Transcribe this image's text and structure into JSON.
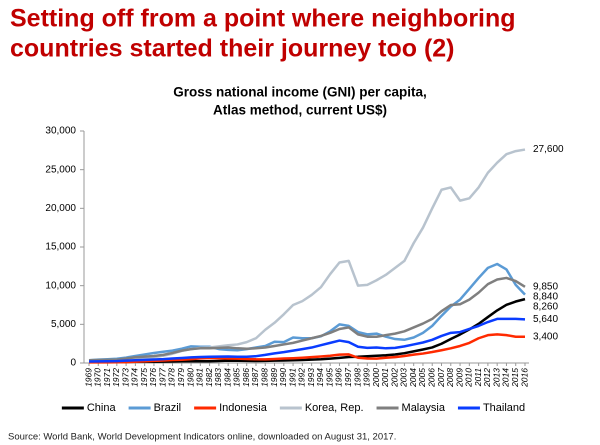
{
  "header": {
    "title": [
      "Setting off from a point where neighboring",
      "countries started their journey too (2)"
    ]
  },
  "chart_data": {
    "type": "line",
    "title": [
      "Gross national income (GNI) per capita,",
      "Atlas method, current US$)"
    ],
    "categories": [
      "1969",
      "1970",
      "1971",
      "1972",
      "1973",
      "1974",
      "1975",
      "1976",
      "1977",
      "1978",
      "1979",
      "1980",
      "1981",
      "1982",
      "1983",
      "1984",
      "1985",
      "1986",
      "1987",
      "1988",
      "1989",
      "1990",
      "1991",
      "1992",
      "1993",
      "1994",
      "1995",
      "1996",
      "1997",
      "1998",
      "1999",
      "2000",
      "2001",
      "2002",
      "2003",
      "2004",
      "2005",
      "2006",
      "2007",
      "2008",
      "2009",
      "2010",
      "2011",
      "2012",
      "2013",
      "2014",
      "2015",
      "2016"
    ],
    "ylim": [
      0,
      30000
    ],
    "yticks": [
      0,
      {
        "value": 5000,
        "label": "5,000"
      },
      {
        "value": 10000,
        "label": "10,000"
      },
      {
        "value": 15000,
        "label": "15,000"
      },
      {
        "value": 20000,
        "label": "20,000"
      },
      {
        "value": 25000,
        "label": "25,000"
      },
      {
        "value": 30000,
        "label": "30,000"
      }
    ],
    "grid": false,
    "legend": "bottom",
    "series": [
      {
        "name": "China",
        "color": "#000000",
        "values": [
          100,
          110,
          120,
          130,
          140,
          170,
          180,
          170,
          180,
          200,
          220,
          220,
          220,
          230,
          260,
          300,
          290,
          280,
          260,
          270,
          310,
          330,
          350,
          380,
          430,
          480,
          570,
          670,
          770,
          810,
          880,
          940,
          1000,
          1100,
          1270,
          1500,
          1750,
          2010,
          2490,
          3100,
          3690,
          4340,
          5060,
          5940,
          6800,
          7520,
          7950,
          8260
        ],
        "value_labels": [
          null,
          null,
          null,
          null,
          null,
          null,
          null,
          null,
          null,
          null,
          null,
          null,
          null,
          null,
          null,
          null,
          null,
          null,
          null,
          null,
          null,
          null,
          null,
          null,
          null,
          null,
          null,
          null,
          null,
          null,
          null,
          null,
          null,
          null,
          null,
          null,
          null,
          null,
          null,
          null,
          null,
          null,
          null,
          null,
          null,
          null,
          null,
          "8,260"
        ]
      },
      {
        "name": "Brazil",
        "color": "#5b9bd5",
        "values": [
          350,
          430,
          480,
          550,
          700,
          900,
          1100,
          1300,
          1450,
          1600,
          1850,
          2150,
          2100,
          2100,
          1800,
          1700,
          1650,
          1800,
          2000,
          2200,
          2750,
          2700,
          3300,
          3200,
          3200,
          3450,
          4100,
          5000,
          4800,
          4000,
          3700,
          3800,
          3400,
          3100,
          3000,
          3300,
          3900,
          4800,
          6100,
          7300,
          8200,
          9600,
          11000,
          12300,
          12800,
          12100,
          10100,
          8840
        ],
        "value_labels": [
          null,
          null,
          null,
          null,
          null,
          null,
          null,
          null,
          null,
          null,
          null,
          null,
          null,
          null,
          null,
          null,
          null,
          null,
          null,
          null,
          null,
          null,
          null,
          null,
          null,
          null,
          null,
          null,
          null,
          null,
          null,
          null,
          null,
          null,
          null,
          null,
          null,
          null,
          null,
          null,
          null,
          null,
          null,
          null,
          null,
          null,
          null,
          "8,840"
        ]
      },
      {
        "name": "Indonesia",
        "color": "#ff2a00",
        "values": [
          80,
          80,
          80,
          90,
          110,
          160,
          220,
          280,
          320,
          380,
          420,
          500,
          600,
          650,
          620,
          590,
          560,
          520,
          480,
          470,
          520,
          580,
          620,
          680,
          760,
          840,
          940,
          1080,
          1110,
          680,
          580,
          570,
          680,
          760,
          900,
          1080,
          1220,
          1420,
          1650,
          1900,
          2200,
          2600,
          3200,
          3600,
          3700,
          3600,
          3400,
          3400
        ],
        "value_labels": [
          null,
          null,
          null,
          null,
          null,
          null,
          null,
          null,
          null,
          null,
          null,
          null,
          null,
          null,
          null,
          null,
          null,
          null,
          null,
          null,
          null,
          null,
          null,
          null,
          null,
          null,
          null,
          null,
          null,
          null,
          null,
          null,
          null,
          null,
          null,
          null,
          null,
          null,
          null,
          null,
          null,
          null,
          null,
          null,
          null,
          null,
          null,
          "3,400"
        ]
      },
      {
        "name": "Korea, Rep.",
        "color": "#b8c3ce",
        "values": [
          230,
          280,
          320,
          340,
          410,
          550,
          610,
          760,
          930,
          1200,
          1560,
          1800,
          1950,
          2000,
          2150,
          2300,
          2400,
          2700,
          3200,
          4300,
          5200,
          6300,
          7500,
          8000,
          8800,
          9800,
          11500,
          13000,
          13200,
          10000,
          10100,
          10700,
          11400,
          12300,
          13200,
          15500,
          17500,
          20000,
          22400,
          22700,
          21000,
          21300,
          22700,
          24600,
          25900,
          27000,
          27400,
          27600
        ],
        "value_labels": [
          null,
          null,
          null,
          null,
          null,
          null,
          null,
          null,
          null,
          null,
          null,
          null,
          null,
          null,
          null,
          null,
          null,
          null,
          null,
          null,
          null,
          null,
          null,
          null,
          null,
          null,
          null,
          null,
          null,
          null,
          null,
          null,
          null,
          null,
          null,
          null,
          null,
          null,
          null,
          null,
          null,
          null,
          null,
          null,
          null,
          null,
          null,
          "27,600"
        ]
      },
      {
        "name": "Malaysia",
        "color": "#7f7f7f",
        "values": [
          350,
          380,
          400,
          440,
          580,
          750,
          820,
          900,
          1050,
          1300,
          1600,
          1800,
          1900,
          1900,
          1950,
          2000,
          1900,
          1850,
          1900,
          2000,
          2200,
          2400,
          2600,
          2900,
          3200,
          3500,
          3900,
          4400,
          4600,
          3700,
          3400,
          3400,
          3600,
          3800,
          4100,
          4600,
          5100,
          5700,
          6700,
          7500,
          7600,
          8200,
          9100,
          10200,
          10800,
          11000,
          10600,
          9850
        ],
        "value_labels": [
          null,
          null,
          null,
          null,
          null,
          null,
          null,
          null,
          null,
          null,
          null,
          null,
          null,
          null,
          null,
          null,
          null,
          null,
          null,
          null,
          null,
          null,
          null,
          null,
          null,
          null,
          null,
          null,
          null,
          null,
          null,
          null,
          null,
          null,
          null,
          null,
          null,
          null,
          null,
          null,
          null,
          null,
          null,
          null,
          null,
          null,
          null,
          "9,850"
        ]
      },
      {
        "name": "Thailand",
        "color": "#0a3cff",
        "values": [
          190,
          210,
          220,
          240,
          300,
          360,
          400,
          450,
          500,
          580,
          650,
          720,
          780,
          800,
          820,
          840,
          800,
          810,
          880,
          1050,
          1250,
          1400,
          1600,
          1800,
          2000,
          2300,
          2600,
          2900,
          2700,
          2100,
          1950,
          2000,
          1900,
          1950,
          2150,
          2400,
          2650,
          3000,
          3500,
          3900,
          4000,
          4400,
          4800,
          5300,
          5700,
          5700,
          5700,
          5640
        ],
        "value_labels": [
          null,
          null,
          null,
          null,
          null,
          null,
          null,
          null,
          null,
          null,
          null,
          null,
          null,
          null,
          null,
          null,
          null,
          null,
          null,
          null,
          null,
          null,
          null,
          null,
          null,
          null,
          null,
          null,
          null,
          null,
          null,
          null,
          null,
          null,
          null,
          null,
          null,
          null,
          null,
          null,
          null,
          null,
          null,
          null,
          null,
          null,
          null,
          "5,640"
        ]
      }
    ]
  },
  "source": "Source: World Bank, World Development Indicators online, downloaded on August 31, 2017."
}
